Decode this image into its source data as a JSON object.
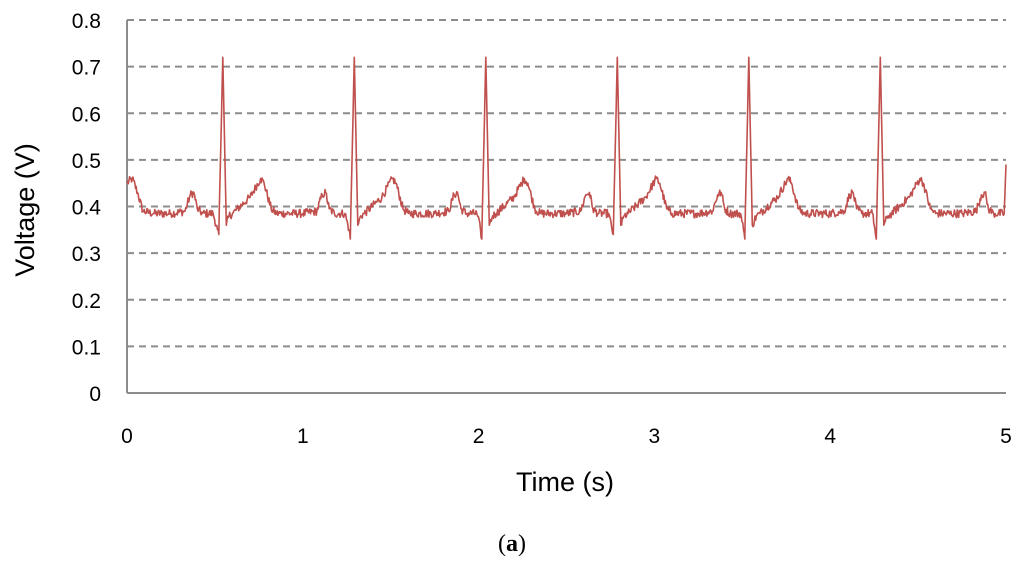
{
  "chart_data": {
    "type": "line",
    "xlabel": "Time (s)",
    "ylabel": "Voltage (V)",
    "xlim": [
      0,
      5
    ],
    "ylim": [
      0,
      0.8
    ],
    "x_ticks": [
      "0",
      "1",
      "2",
      "3",
      "4",
      "5"
    ],
    "y_ticks": [
      "0",
      "0.1",
      "0.2",
      "0.3",
      "0.4",
      "0.5",
      "0.6",
      "0.7",
      "0.8"
    ],
    "grid": "horizontal dashed",
    "series_color": "#c0504d",
    "beat_period_s": 0.748,
    "r_peak_times_s": [
      0.545,
      1.293,
      2.041,
      2.789,
      3.537,
      4.285
    ],
    "r_peak_values_v": [
      0.72,
      0.72,
      0.72,
      0.72,
      0.72,
      0.72
    ],
    "points": [
      [
        0.0,
        0.45
      ],
      [
        0.03,
        0.46
      ],
      [
        0.06,
        0.43
      ],
      [
        0.09,
        0.39
      ],
      [
        0.15,
        0.385
      ],
      [
        0.25,
        0.385
      ],
      [
        0.33,
        0.39
      ],
      [
        0.36,
        0.425
      ],
      [
        0.38,
        0.43
      ],
      [
        0.4,
        0.395
      ],
      [
        0.43,
        0.385
      ],
      [
        0.49,
        0.385
      ],
      [
        0.515,
        0.35
      ],
      [
        0.522,
        0.34
      ],
      [
        0.545,
        0.72
      ],
      [
        0.565,
        0.36
      ],
      [
        0.58,
        0.38
      ],
      [
        0.6,
        0.385
      ],
      [
        0.7,
        0.42
      ],
      [
        0.76,
        0.46
      ],
      [
        0.78,
        0.45
      ],
      [
        0.82,
        0.395
      ],
      [
        0.85,
        0.385
      ],
      [
        1.0,
        0.385
      ],
      [
        1.08,
        0.39
      ],
      [
        1.11,
        0.425
      ],
      [
        1.13,
        0.43
      ],
      [
        1.15,
        0.395
      ],
      [
        1.18,
        0.385
      ],
      [
        1.24,
        0.385
      ],
      [
        1.263,
        0.35
      ],
      [
        1.27,
        0.33
      ],
      [
        1.293,
        0.72
      ],
      [
        1.313,
        0.36
      ],
      [
        1.33,
        0.38
      ],
      [
        1.35,
        0.385
      ],
      [
        1.45,
        0.42
      ],
      [
        1.51,
        0.46
      ],
      [
        1.53,
        0.45
      ],
      [
        1.57,
        0.395
      ],
      [
        1.6,
        0.385
      ],
      [
        1.75,
        0.385
      ],
      [
        1.83,
        0.39
      ],
      [
        1.86,
        0.425
      ],
      [
        1.88,
        0.43
      ],
      [
        1.9,
        0.395
      ],
      [
        1.93,
        0.385
      ],
      [
        1.99,
        0.385
      ],
      [
        2.011,
        0.35
      ],
      [
        2.018,
        0.33
      ],
      [
        2.041,
        0.72
      ],
      [
        2.061,
        0.36
      ],
      [
        2.08,
        0.38
      ],
      [
        2.1,
        0.385
      ],
      [
        2.2,
        0.42
      ],
      [
        2.26,
        0.46
      ],
      [
        2.28,
        0.45
      ],
      [
        2.32,
        0.395
      ],
      [
        2.35,
        0.385
      ],
      [
        2.5,
        0.385
      ],
      [
        2.58,
        0.39
      ],
      [
        2.61,
        0.425
      ],
      [
        2.63,
        0.43
      ],
      [
        2.65,
        0.395
      ],
      [
        2.68,
        0.385
      ],
      [
        2.74,
        0.385
      ],
      [
        2.759,
        0.35
      ],
      [
        2.766,
        0.34
      ],
      [
        2.789,
        0.72
      ],
      [
        2.809,
        0.36
      ],
      [
        2.83,
        0.38
      ],
      [
        2.85,
        0.385
      ],
      [
        2.95,
        0.42
      ],
      [
        3.01,
        0.46
      ],
      [
        3.03,
        0.45
      ],
      [
        3.07,
        0.395
      ],
      [
        3.1,
        0.385
      ],
      [
        3.25,
        0.385
      ],
      [
        3.33,
        0.39
      ],
      [
        3.36,
        0.425
      ],
      [
        3.38,
        0.43
      ],
      [
        3.4,
        0.395
      ],
      [
        3.43,
        0.385
      ],
      [
        3.49,
        0.385
      ],
      [
        3.507,
        0.35
      ],
      [
        3.514,
        0.33
      ],
      [
        3.537,
        0.72
      ],
      [
        3.557,
        0.36
      ],
      [
        3.58,
        0.38
      ],
      [
        3.6,
        0.385
      ],
      [
        3.7,
        0.42
      ],
      [
        3.76,
        0.46
      ],
      [
        3.78,
        0.45
      ],
      [
        3.82,
        0.395
      ],
      [
        3.85,
        0.385
      ],
      [
        4.0,
        0.385
      ],
      [
        4.08,
        0.39
      ],
      [
        4.11,
        0.425
      ],
      [
        4.13,
        0.43
      ],
      [
        4.15,
        0.395
      ],
      [
        4.18,
        0.385
      ],
      [
        4.24,
        0.385
      ],
      [
        4.255,
        0.35
      ],
      [
        4.262,
        0.33
      ],
      [
        4.285,
        0.72
      ],
      [
        4.305,
        0.36
      ],
      [
        4.33,
        0.38
      ],
      [
        4.35,
        0.385
      ],
      [
        4.45,
        0.42
      ],
      [
        4.51,
        0.46
      ],
      [
        4.53,
        0.45
      ],
      [
        4.57,
        0.395
      ],
      [
        4.6,
        0.385
      ],
      [
        4.75,
        0.385
      ],
      [
        4.83,
        0.39
      ],
      [
        4.86,
        0.425
      ],
      [
        4.88,
        0.43
      ],
      [
        4.9,
        0.395
      ],
      [
        4.93,
        0.385
      ],
      [
        4.99,
        0.385
      ],
      [
        5.0,
        0.49
      ]
    ]
  },
  "caption": {
    "open": "(",
    "letter": "a",
    "close": ")"
  }
}
